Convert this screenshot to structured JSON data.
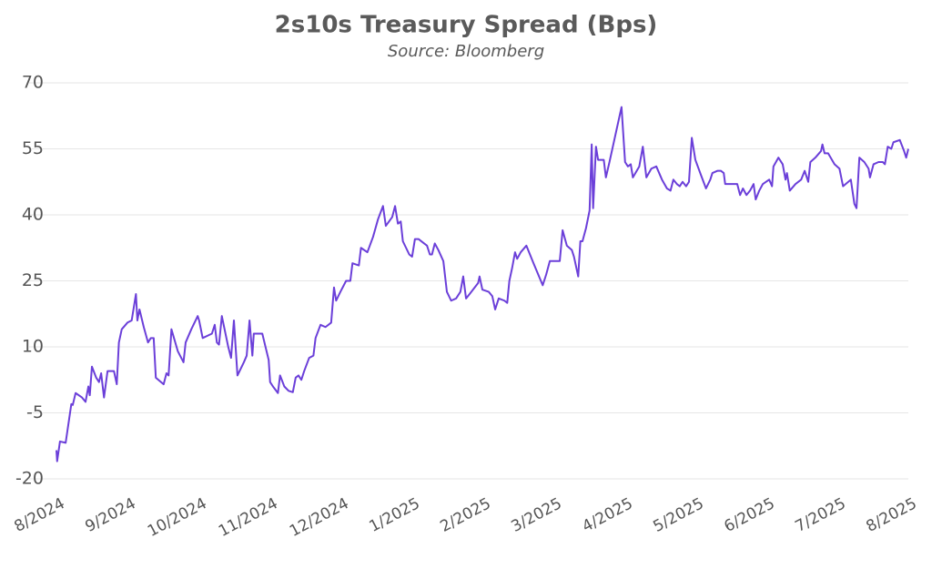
{
  "chart_data": {
    "type": "line",
    "title": "2s10s Treasury Spread (Bps)",
    "subtitle": "Source: Bloomberg",
    "xlim": [
      0,
      12
    ],
    "xticks": [
      {
        "value": 0,
        "label": "8/2024"
      },
      {
        "value": 1,
        "label": "9/2024"
      },
      {
        "value": 2,
        "label": "10/2024"
      },
      {
        "value": 3,
        "label": "11/2024"
      },
      {
        "value": 4,
        "label": "12/2024"
      },
      {
        "value": 5,
        "label": "1/2025"
      },
      {
        "value": 6,
        "label": "2/2025"
      },
      {
        "value": 7,
        "label": "3/2025"
      },
      {
        "value": 8,
        "label": "4/2025"
      },
      {
        "value": 9,
        "label": "5/2025"
      },
      {
        "value": 10,
        "label": "6/2025"
      },
      {
        "value": 11,
        "label": "7/2025"
      },
      {
        "value": 12,
        "label": "8/2025"
      }
    ],
    "ylim": [
      -20,
      70
    ],
    "yticks": [
      -20,
      -5,
      10,
      25,
      40,
      55,
      70
    ],
    "grid": true,
    "x": [
      0,
      0.01,
      0.05,
      0.13,
      0.21,
      0.23,
      0.27,
      0.36,
      0.41,
      0.45,
      0.47,
      0.5,
      0.56,
      0.6,
      0.63,
      0.67,
      0.72,
      0.81,
      0.85,
      0.88,
      0.92,
      1,
      1.06,
      1.12,
      1.14,
      1.17,
      1.23,
      1.29,
      1.33,
      1.37,
      1.4,
      1.51,
      1.55,
      1.58,
      1.62,
      1.71,
      1.79,
      1.82,
      1.9,
      1.99,
      2.01,
      2.06,
      2.19,
      2.23,
      2.26,
      2.29,
      2.33,
      2.42,
      2.46,
      2.5,
      2.55,
      2.64,
      2.68,
      2.72,
      2.76,
      2.78,
      2.9,
      2.99,
      3.01,
      3.05,
      3.12,
      3.15,
      3.21,
      3.27,
      3.33,
      3.37,
      3.41,
      3.45,
      3.49,
      3.56,
      3.62,
      3.65,
      3.72,
      3.79,
      3.87,
      3.91,
      3.94,
      4,
      4.08,
      4.14,
      4.17,
      4.26,
      4.29,
      4.38,
      4.46,
      4.53,
      4.6,
      4.64,
      4.73,
      4.77,
      4.81,
      4.85,
      4.88,
      4.97,
      5.01,
      5.05,
      5.1,
      5.18,
      5.22,
      5.26,
      5.29,
      5.33,
      5.38,
      5.45,
      5.5,
      5.56,
      5.63,
      5.69,
      5.73,
      5.77,
      5.82,
      5.94,
      5.96,
      6,
      6.09,
      6.14,
      6.18,
      6.23,
      6.31,
      6.35,
      6.38,
      6.42,
      6.46,
      6.49,
      6.54,
      6.62,
      6.72,
      6.85,
      6.9,
      6.95,
      7.05,
      7.09,
      7.13,
      7.19,
      7.26,
      7.29,
      7.35,
      7.38,
      7.41,
      7.46,
      7.51,
      7.54,
      7.56,
      7.6,
      7.63,
      7.71,
      7.74,
      7.79,
      7.96,
      8.01,
      8.05,
      8.09,
      8.12,
      8.21,
      8.26,
      8.31,
      8.38,
      8.45,
      8.53,
      8.6,
      8.65,
      8.69,
      8.74,
      8.78,
      8.82,
      8.87,
      8.91,
      8.95,
      9,
      9.08,
      9.15,
      9.21,
      9.24,
      9.31,
      9.36,
      9.4,
      9.42,
      9.5,
      9.59,
      9.63,
      9.67,
      9.72,
      9.77,
      9.82,
      9.85,
      9.9,
      9.95,
      10.04,
      10.08,
      10.1,
      10.17,
      10.23,
      10.27,
      10.29,
      10.33,
      10.41,
      10.49,
      10.54,
      10.59,
      10.62,
      10.69,
      10.77,
      10.79,
      10.82,
      10.87,
      10.96,
      11.03,
      11.08,
      11.19,
      11.24,
      11.27,
      11.31,
      11.38,
      11.44,
      11.46,
      11.51,
      11.58,
      11.64,
      11.67,
      11.71,
      11.76,
      11.79,
      11.88,
      11.94,
      11.97,
      12
    ],
    "series": [
      {
        "name": "2s10s",
        "color": "#6b3fd9",
        "values": [
          -13.5,
          -16,
          -11.5,
          -11.8,
          -3,
          -3.2,
          -0.5,
          -1.5,
          -2.5,
          1,
          -1,
          5.5,
          3,
          2,
          4,
          -1.5,
          4.5,
          4.5,
          1.5,
          11,
          14,
          15.5,
          16,
          22,
          16,
          18.5,
          14.5,
          11,
          12,
          12,
          3,
          1.5,
          4,
          3.5,
          14,
          9,
          6.5,
          11,
          14,
          17,
          16,
          12,
          13,
          15,
          11,
          10.5,
          17,
          10,
          7.5,
          16,
          3.5,
          6.5,
          8,
          16,
          8,
          13,
          13,
          7,
          2,
          1,
          -0.5,
          3.5,
          1,
          0,
          -0.3,
          3,
          3.5,
          2.5,
          4.5,
          7.5,
          8,
          12,
          15,
          14.5,
          15.5,
          23.5,
          20.5,
          22.5,
          25,
          25,
          29,
          28.5,
          32.5,
          31.5,
          35,
          39,
          42,
          37.5,
          39.5,
          42,
          38,
          38.5,
          34,
          31,
          30.5,
          34.5,
          34.5,
          33.5,
          33,
          31,
          31,
          33.5,
          32,
          29.5,
          22.5,
          20.5,
          21,
          22.5,
          26,
          21,
          22,
          24.5,
          26,
          23,
          22.5,
          21.5,
          18.5,
          21,
          20.5,
          20,
          25,
          28,
          31.5,
          30,
          31.5,
          33,
          29,
          24,
          26.5,
          29.5,
          29.5,
          29.5,
          36.5,
          33,
          32,
          30.5,
          26,
          34,
          34,
          37,
          41,
          56,
          41.5,
          55.5,
          52.5,
          52.5,
          48.5,
          52,
          64.5,
          52,
          51,
          51.5,
          48.5,
          51,
          55.5,
          48.5,
          50.5,
          51,
          48,
          46,
          45.5,
          48,
          47,
          46.5,
          47.5,
          46.5,
          47.5,
          57.5,
          52.5,
          49,
          46,
          48,
          49.5,
          50,
          50,
          49.5,
          47,
          47,
          47,
          44.5,
          46,
          44.5,
          45.5,
          47,
          43.5,
          45.5,
          47,
          48,
          46.5,
          51,
          53,
          51.5,
          48,
          49.5,
          45.5,
          47,
          48,
          50,
          47.5,
          52,
          53,
          54.5,
          56,
          54,
          54,
          51.5,
          50.5,
          46.5,
          48,
          42.5,
          41.5,
          53,
          52,
          50.5,
          48.5,
          51.5,
          52,
          52,
          51.5,
          55.5,
          55,
          56.5,
          57,
          54.5,
          53,
          55
        ]
      }
    ]
  }
}
